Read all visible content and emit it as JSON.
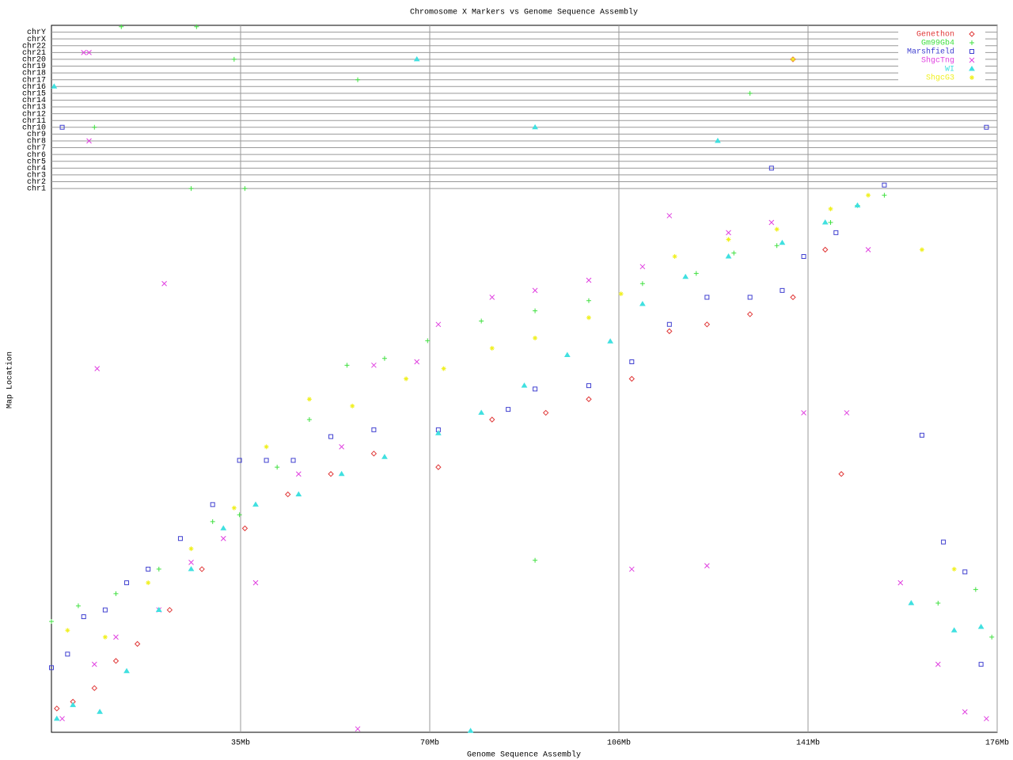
{
  "chart_data": {
    "type": "scatter",
    "title": "Chromosome X Markers vs Genome Sequence Assembly",
    "x_label": "Genome Sequence Assembly",
    "y_label": "Map Location",
    "xlim": [
      0,
      176
    ],
    "xticks": [
      {
        "value": 35.2,
        "label": "35Mb"
      },
      {
        "value": 70.4,
        "label": "70Mb"
      },
      {
        "value": 105.6,
        "label": "106Mb"
      },
      {
        "value": 140.8,
        "label": "141Mb"
      },
      {
        "value": 176,
        "label": "176Mb"
      }
    ],
    "ylim": [
      0,
      104
    ],
    "yticks": [
      {
        "value": 80,
        "label": "chr1"
      },
      {
        "value": 81,
        "label": "chr2"
      },
      {
        "value": 82,
        "label": "chr3"
      },
      {
        "value": 83,
        "label": "chr4"
      },
      {
        "value": 84,
        "label": "chr5"
      },
      {
        "value": 85,
        "label": "chr6"
      },
      {
        "value": 86,
        "label": "chr7"
      },
      {
        "value": 87,
        "label": "chr8"
      },
      {
        "value": 88,
        "label": "chr9"
      },
      {
        "value": 89,
        "label": "chr10"
      },
      {
        "value": 90,
        "label": "chr11"
      },
      {
        "value": 91,
        "label": "chr12"
      },
      {
        "value": 92,
        "label": "chr13"
      },
      {
        "value": 93,
        "label": "chr14"
      },
      {
        "value": 94,
        "label": "chr15"
      },
      {
        "value": 95,
        "label": "chr16"
      },
      {
        "value": 96,
        "label": "chr17"
      },
      {
        "value": 97,
        "label": "chr18"
      },
      {
        "value": 98,
        "label": "chr19"
      },
      {
        "value": 99,
        "label": "chr20"
      },
      {
        "value": 100,
        "label": "chr21"
      },
      {
        "value": 101,
        "label": "chr22"
      },
      {
        "value": 102,
        "label": "chrX"
      },
      {
        "value": 103,
        "label": "chrY"
      }
    ],
    "grid": true,
    "legend": "top-right",
    "series": [
      {
        "name": "Genethon",
        "color": "#e03838",
        "marker": "diamond",
        "x": [
          1,
          4,
          8,
          12,
          16,
          22,
          28,
          36,
          44,
          52,
          60,
          72,
          82,
          92,
          100,
          108,
          115,
          122,
          130,
          138,
          144,
          147,
          138
        ],
        "values": [
          3.5,
          4.5,
          6.5,
          10.5,
          13,
          18,
          24,
          30,
          35,
          38,
          41,
          39,
          46,
          47,
          49,
          52,
          59,
          60,
          61.5,
          64,
          71,
          38,
          99
        ]
      },
      {
        "name": "Gm99Gb4",
        "color": "#40e040",
        "marker": "plus",
        "x": [
          0,
          5,
          12,
          20,
          30,
          35,
          42,
          48,
          55,
          62,
          70,
          80,
          90,
          100,
          110,
          120,
          127,
          135,
          145,
          150,
          155,
          90,
          165,
          172,
          175,
          13,
          27,
          34,
          57,
          36,
          26,
          8,
          130
        ],
        "values": [
          16.3,
          18.6,
          20.4,
          24,
          31,
          32,
          39,
          46,
          54,
          55,
          57.6,
          60.5,
          62,
          63.5,
          66,
          67.5,
          70.5,
          71.6,
          75,
          77.5,
          79,
          25.3,
          19,
          21,
          14,
          103.8,
          103.8,
          99,
          96,
          80,
          80,
          89,
          94
        ]
      },
      {
        "name": "Marshfield",
        "color": "#4040d0",
        "marker": "square",
        "x": [
          0,
          3,
          6,
          10,
          14,
          18,
          24,
          30,
          35,
          40,
          45,
          52,
          60,
          72,
          85,
          90,
          100,
          108,
          115,
          122,
          130,
          136,
          140,
          146,
          155,
          162,
          166,
          170,
          173,
          2,
          174,
          134
        ],
        "values": [
          9.5,
          11.5,
          17,
          18,
          22,
          24,
          28.5,
          33.5,
          40,
          40,
          40,
          43.5,
          44.5,
          44.5,
          47.5,
          50.5,
          51,
          54.5,
          60,
          64,
          64,
          65,
          70,
          73.5,
          80.5,
          43.7,
          28,
          23.6,
          10,
          89,
          89,
          83
        ]
      },
      {
        "name": "ShgcTng",
        "color": "#e040e0",
        "marker": "cross",
        "x": [
          2,
          8,
          12,
          20,
          26,
          32,
          38,
          46,
          54,
          60,
          68,
          72,
          82,
          90,
          100,
          110,
          115,
          126,
          134,
          140,
          148,
          152,
          158,
          165,
          170,
          174,
          8.5,
          21,
          108,
          122,
          6,
          7,
          7,
          57
        ],
        "values": [
          2,
          10,
          14,
          18,
          25,
          28.5,
          22,
          38,
          42,
          54,
          54.5,
          60,
          64,
          65,
          66.5,
          68.5,
          76,
          73.5,
          75,
          47,
          47,
          71,
          22,
          10,
          3,
          2,
          53.5,
          66,
          24,
          24.5,
          100,
          100,
          87,
          0.5
        ]
      },
      {
        "name": "WI",
        "color": "#40e0e0",
        "marker": "triangle",
        "x": [
          1,
          4,
          9,
          14,
          20,
          26,
          32,
          38,
          46,
          54,
          62,
          72,
          80,
          88,
          96,
          104,
          110,
          118,
          126,
          136,
          144,
          150,
          160,
          168,
          173,
          78,
          68,
          0.5,
          90,
          124
        ],
        "values": [
          2,
          4,
          3,
          9,
          18,
          24,
          30,
          33.5,
          35,
          38,
          40.5,
          44,
          47,
          51,
          55.5,
          57.5,
          63,
          67,
          70,
          72,
          75,
          77.5,
          19,
          15,
          15.5,
          0.2,
          99,
          95,
          89,
          87
        ]
      },
      {
        "name": "ShgcG3",
        "color": "#f0f020",
        "marker": "star",
        "x": [
          3,
          10,
          18,
          26,
          34,
          40,
          48,
          56,
          66,
          73,
          82,
          90,
          100,
          106,
          116,
          126,
          135,
          145,
          152,
          162,
          168,
          138
        ],
        "values": [
          15,
          14,
          22,
          27,
          33,
          42,
          49,
          48,
          52,
          53.5,
          56.5,
          58,
          61,
          64.5,
          70,
          72.5,
          74,
          77,
          79,
          71,
          24,
          99
        ]
      }
    ]
  }
}
